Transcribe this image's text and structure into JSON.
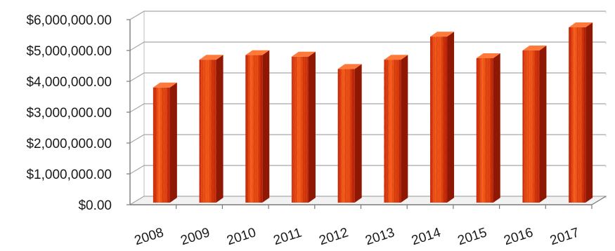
{
  "chart_data": {
    "type": "bar",
    "title": "",
    "xlabel": "",
    "ylabel": "",
    "categories": [
      "2008",
      "2009",
      "2010",
      "2011",
      "2012",
      "2013",
      "2014",
      "2015",
      "2016",
      "2017"
    ],
    "values": [
      3800000,
      4700000,
      4850000,
      4800000,
      4400000,
      4700000,
      5450000,
      4750000,
      5000000,
      5750000
    ],
    "ylim": [
      0,
      6000000
    ],
    "yticks": [
      0,
      1000000,
      2000000,
      3000000,
      4000000,
      5000000,
      6000000
    ],
    "ytick_labels": [
      "$0.00",
      "$1,000,000.00",
      "$2,000,000.00",
      "$3,000,000.00",
      "$4,000,000.00",
      "$5,000,000.00",
      "$6,000,000.00"
    ],
    "grid": true,
    "legend": "none",
    "style": "3d-column",
    "bar_colors": {
      "front_light": "#f25a1a",
      "front_dark": "#b81e06",
      "side": "#8f1804",
      "top": "#ff7a3a"
    }
  }
}
